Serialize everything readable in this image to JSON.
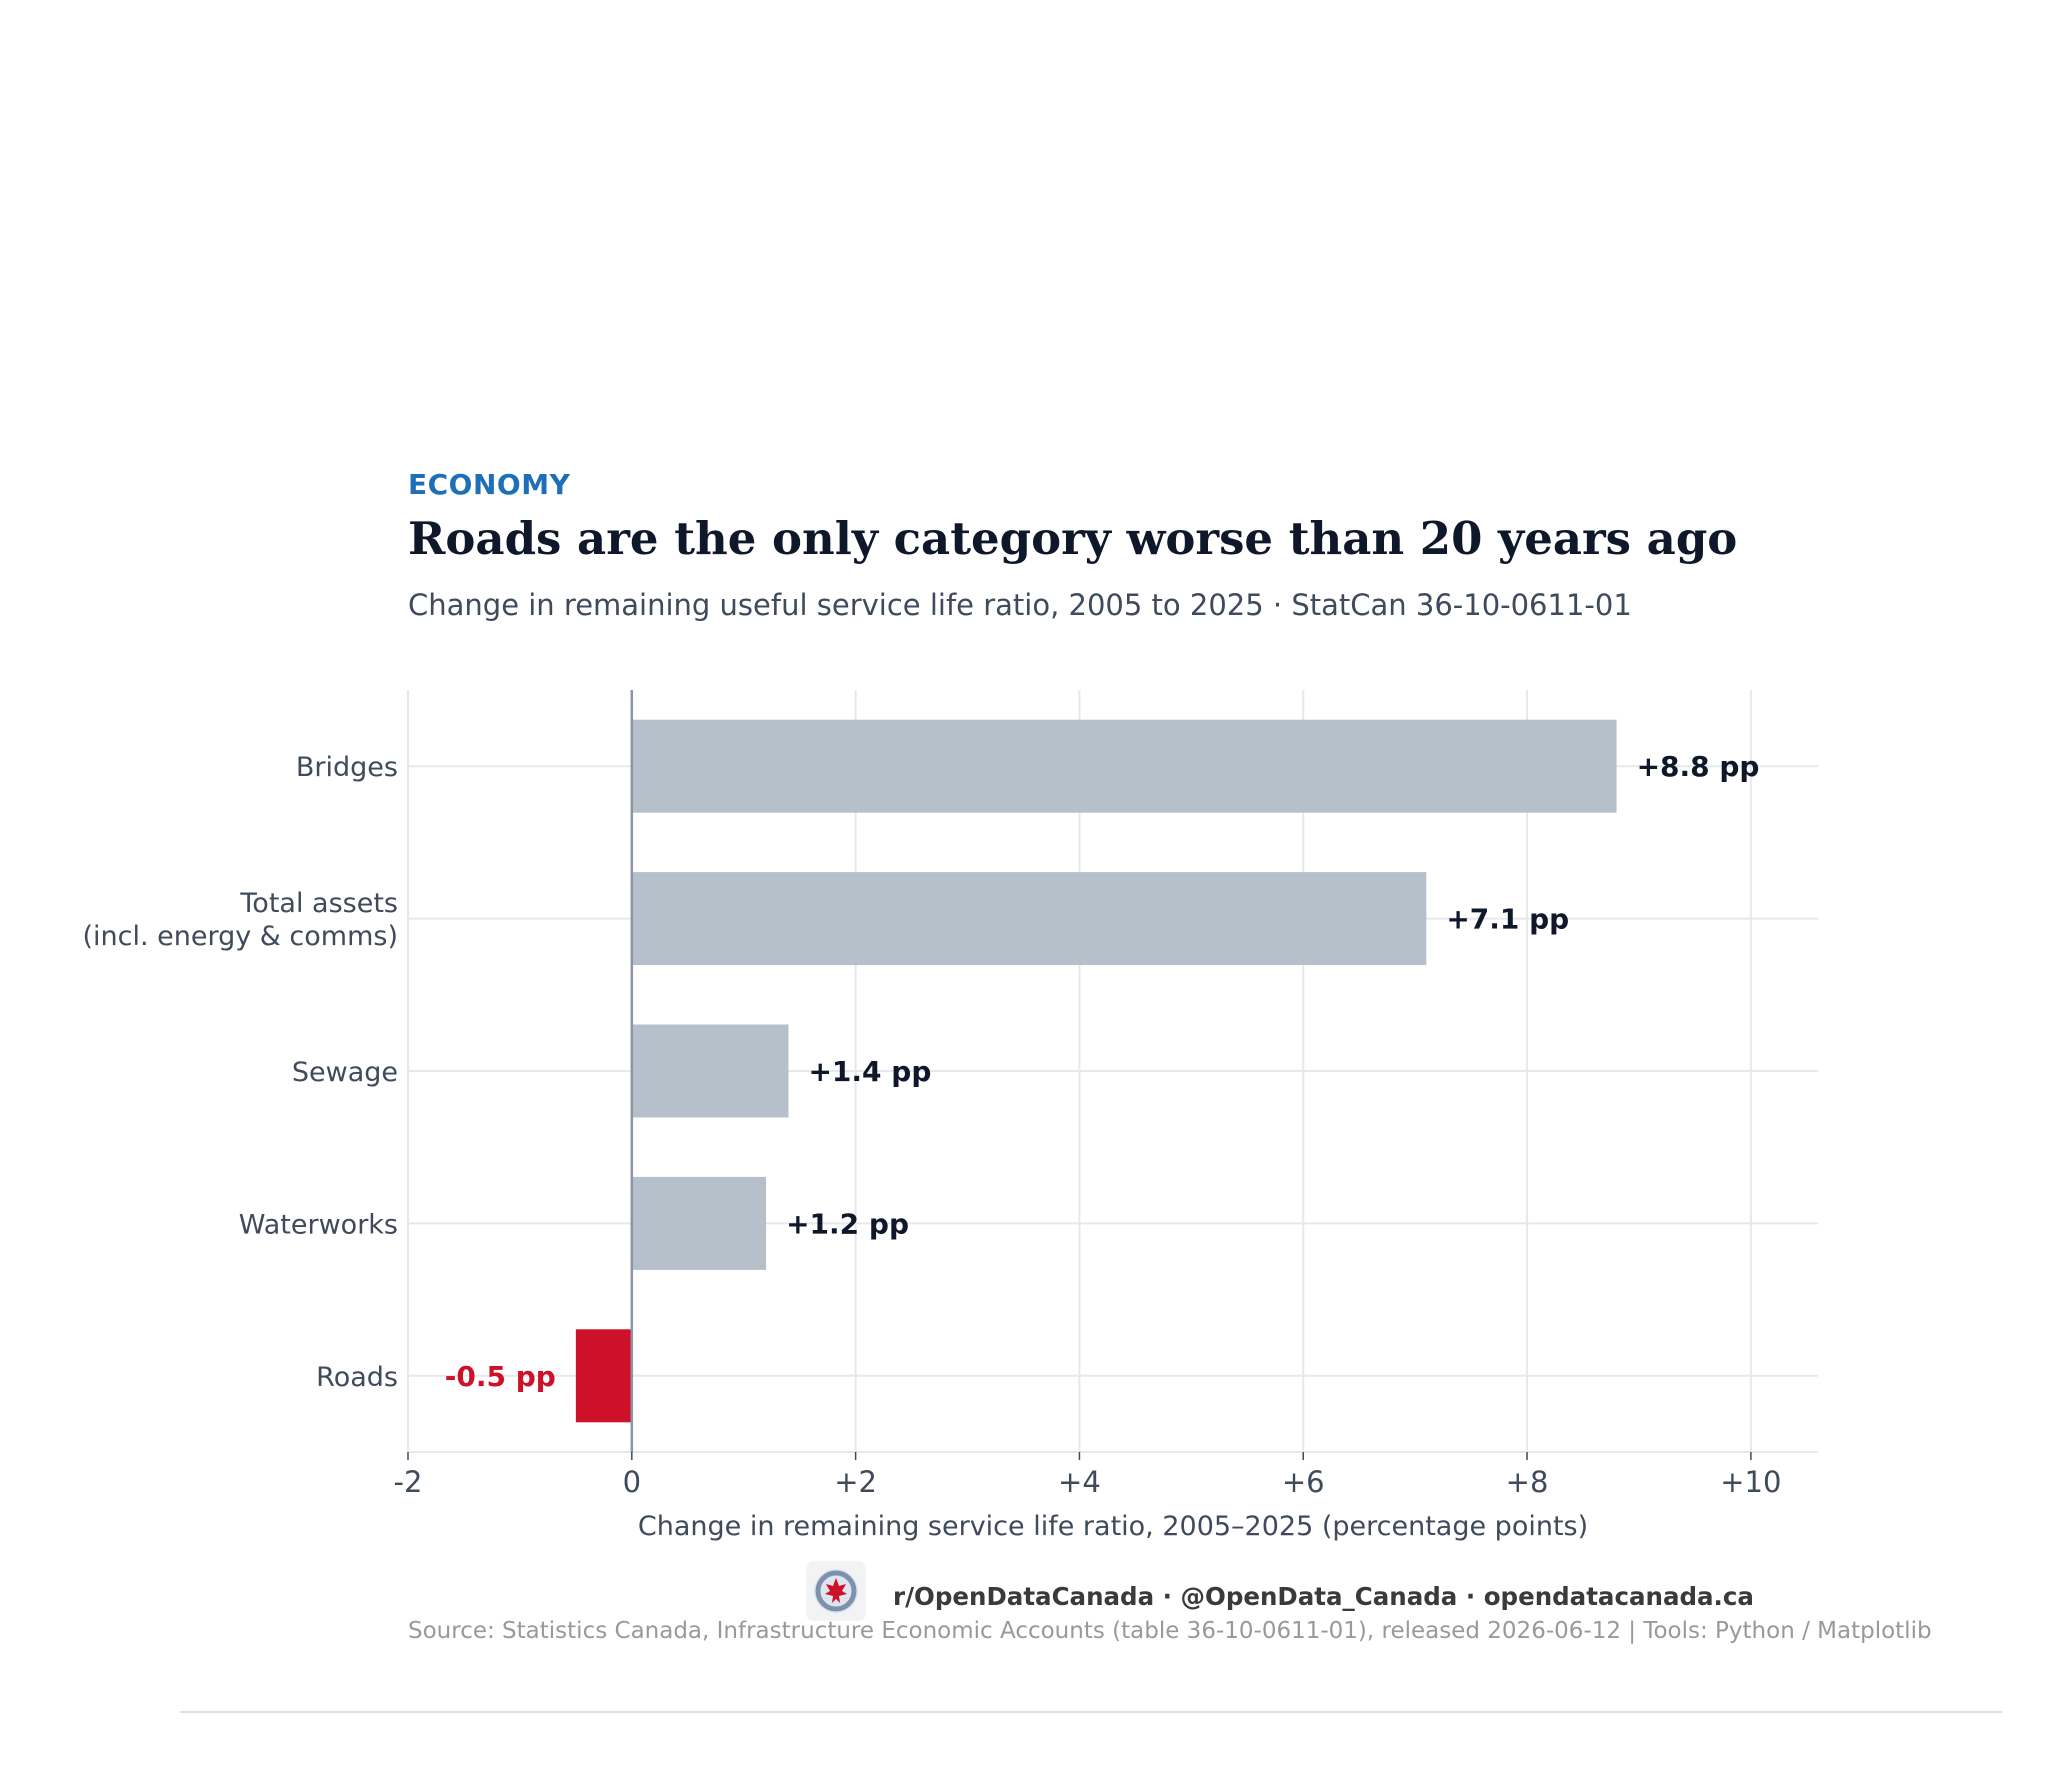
{
  "header": {
    "kicker": "ECONOMY",
    "title": "Roads are the only category worse than 20 years ago",
    "subtitle": "Change in remaining useful service life ratio, 2005 to 2025 · StatCan 36-10-0611-01"
  },
  "chart_data": {
    "type": "bar",
    "orientation": "horizontal",
    "categories": [
      "Bridges",
      "Total assets\n(incl. energy & comms)",
      "Sewage",
      "Waterworks",
      "Roads"
    ],
    "values": [
      8.8,
      7.1,
      1.4,
      1.2,
      -0.5
    ],
    "value_labels": [
      "+8.8 pp",
      "+7.1 pp",
      "+1.4 pp",
      "+1.2 pp",
      "-0.5 pp"
    ],
    "xlabel": "Change in remaining service life ratio, 2005–2025 (percentage points)",
    "xlim": [
      -2,
      10.6
    ],
    "xticks": [
      -2,
      0,
      2,
      4,
      6,
      8,
      10
    ],
    "xtick_labels": [
      "-2",
      "0",
      "+2",
      "+4",
      "+6",
      "+8",
      "+10"
    ],
    "grid": true,
    "colors": {
      "positive": "#b6c0cb",
      "negative": "#cc1128",
      "label_positive": "#0f172a",
      "label_negative": "#cc1128",
      "grid": "#e6e8ec",
      "zero_line": "#8c96a3",
      "axis_text": "#3f4a5c"
    }
  },
  "footer": {
    "logo_icon": "open-data-canada-logo-icon",
    "social": "r/OpenDataCanada  ·  @OpenData_Canada  ·  opendatacanada.ca",
    "source": "Source: Statistics Canada, Infrastructure Economic Accounts (table 36-10-0611-01), released 2026-06-12  |  Tools: Python / Matplotlib"
  }
}
